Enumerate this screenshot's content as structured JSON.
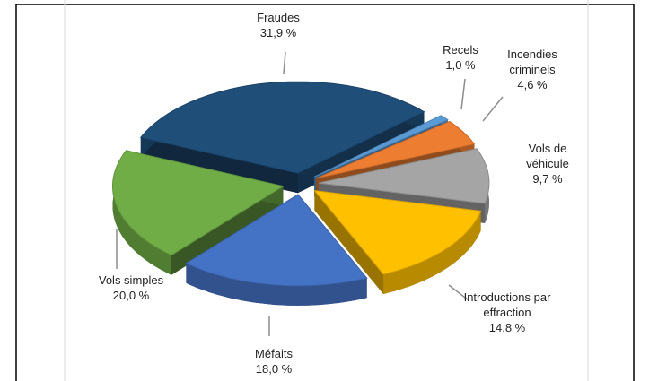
{
  "chart_data": {
    "type": "pie",
    "categories": [
      "Fraudes",
      "Recels",
      "Incendies criminels",
      "Vols de véhicule",
      "Introductions par effraction",
      "Méfaits",
      "Vols simples"
    ],
    "values": [
      31.9,
      1.0,
      4.6,
      9.7,
      14.8,
      18.0,
      20.0
    ],
    "value_labels": [
      "31,9 %",
      "1,0 %",
      "4,6 %",
      "9,7 %",
      "14,8 %",
      "18,0 %",
      "20,0 %"
    ],
    "colors": [
      "#1f4e79",
      "#5b9bd5",
      "#ed7d31",
      "#a5a5a5",
      "#ffc000",
      "#4472c4",
      "#70ad47"
    ]
  }
}
